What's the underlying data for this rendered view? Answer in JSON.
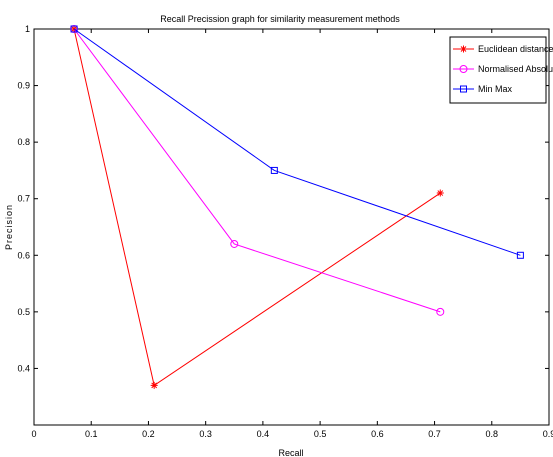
{
  "chart_data": {
    "type": "line",
    "title": "Recall Precission graph for similarity measurement methods",
    "xlabel": "Recall",
    "ylabel": "Precision",
    "xlim": [
      0,
      0.9
    ],
    "ylim": [
      0.3,
      1.0
    ],
    "xticks": [
      0,
      0.1,
      0.2,
      0.3,
      0.4,
      0.5,
      0.6,
      0.7,
      0.8,
      0.9
    ],
    "xtick_labels": [
      "0",
      "0.1",
      "0.2",
      "0.3",
      "0.4",
      "0.5",
      "0.6",
      "0.7",
      "0.8",
      "0.9"
    ],
    "yticks": [
      0.4,
      0.5,
      0.6,
      0.7,
      0.8,
      0.9,
      1.0
    ],
    "ytick_labels": [
      "0.4",
      "0.5",
      "0.6",
      "0.7",
      "0.8",
      "0.9",
      "1"
    ],
    "grid": false,
    "legend_position": "top-right",
    "series": [
      {
        "name": "Euclidean distance",
        "color": "#ff0000",
        "marker": "star",
        "x": [
          0.07,
          0.21,
          0.71
        ],
        "y": [
          1.0,
          0.37,
          0.71
        ]
      },
      {
        "name": "Normalised Absolute",
        "color": "#ff00ff",
        "marker": "circle",
        "x": [
          0.07,
          0.35,
          0.71
        ],
        "y": [
          1.0,
          0.62,
          0.5
        ]
      },
      {
        "name": "Min Max",
        "color": "#0000ff",
        "marker": "square",
        "x": [
          0.07,
          0.42,
          0.85
        ],
        "y": [
          1.0,
          0.75,
          0.6
        ]
      }
    ]
  }
}
